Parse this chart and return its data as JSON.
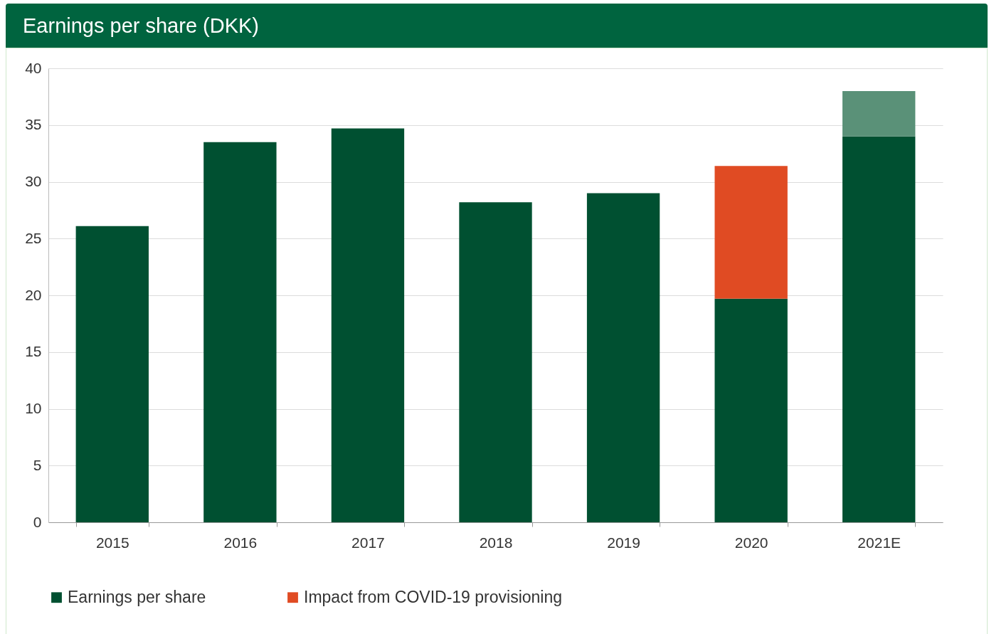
{
  "chart_data": {
    "type": "bar",
    "title": "Earnings per share (DKK)",
    "categories": [
      "2015",
      "2016",
      "2017",
      "2018",
      "2019",
      "2020",
      "2021E"
    ],
    "stacked": true,
    "ylim": [
      0,
      40
    ],
    "yticks": [
      0,
      5,
      10,
      15,
      20,
      25,
      30,
      35,
      40
    ],
    "grid": "y",
    "legend": "bottom",
    "series": [
      {
        "name": "Earnings per share",
        "color": "#005031",
        "values": [
          26.1,
          33.5,
          34.7,
          28.2,
          29.0,
          19.7,
          34.0
        ]
      },
      {
        "name": "Impact from COVID-19 provisioning",
        "color": "#e04b23",
        "values": [
          null,
          null,
          null,
          null,
          null,
          11.7,
          null
        ]
      },
      {
        "color": "#5a9178",
        "values": [
          null,
          null,
          null,
          null,
          null,
          null,
          4.0
        ]
      }
    ]
  }
}
